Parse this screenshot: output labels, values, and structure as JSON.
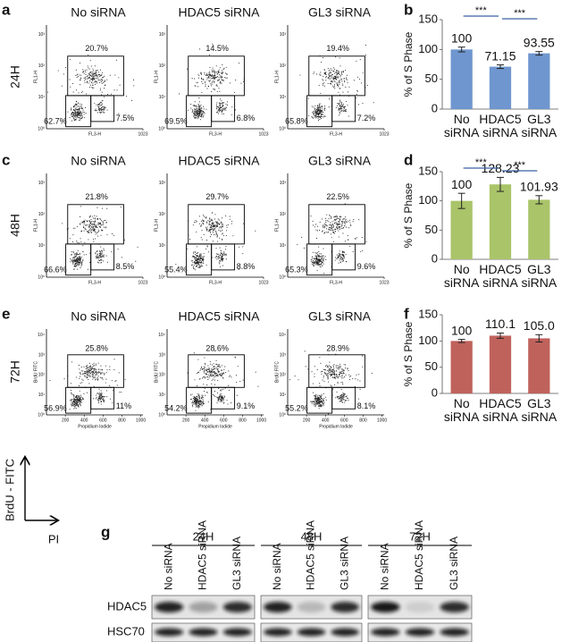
{
  "panel_labels": [
    "a",
    "b",
    "c",
    "d",
    "e",
    "f",
    "g"
  ],
  "flow": {
    "titles": [
      "No siRNA",
      "HDAC5 siRNA",
      "GL3 siRNA"
    ],
    "rows": [
      {
        "time": "24H",
        "x_label": "FL3-H",
        "y_label": "FL1-H",
        "xlim": [
          0,
          1023
        ],
        "x_ticks": [
          1023
        ],
        "y_ticks": [
          "10⁰",
          "10¹",
          "10²",
          "10³"
        ],
        "plots": [
          {
            "s": "20.7%",
            "g1": "62.7%",
            "g2": "7.5%"
          },
          {
            "s": "14.5%",
            "g1": "69.5%",
            "g2": "6.8%"
          },
          {
            "s": "19.4%",
            "g1": "65.8%",
            "g2": "7.2%"
          }
        ]
      },
      {
        "time": "48H",
        "x_label": "FL3-H",
        "y_label": "FL1-H",
        "xlim": [
          0,
          1023
        ],
        "x_ticks": [
          1023
        ],
        "y_ticks": [
          "10⁰",
          "10¹",
          "10²",
          "10³"
        ],
        "plots": [
          {
            "s": "21.8%",
            "g1": "66.6%",
            "g2": "8.5%"
          },
          {
            "s": "29.7%",
            "g1": "55.4%",
            "g2": "8.8%"
          },
          {
            "s": "22.5%",
            "g1": "65.3%",
            "g2": "9.6%"
          }
        ]
      },
      {
        "time": "72H",
        "x_label": "Propidium Iodide",
        "y_label": "BrdU FITC",
        "xlim": [
          0,
          1023
        ],
        "x_ticks": [
          200,
          400,
          600,
          800,
          1000
        ],
        "y_ticks": [
          "10⁰",
          "10¹",
          "10²",
          "10³",
          "10⁴"
        ],
        "plots": [
          {
            "s": "25.8%",
            "g1": "56.9%",
            "g2": "11%"
          },
          {
            "s": "28.6%",
            "g1": "54.2%",
            "g2": "9.1%"
          },
          {
            "s": "28.9%",
            "g1": "55.2%",
            "g2": "8.1%"
          }
        ]
      }
    ],
    "axis_arrows": {
      "y": "BrdU - FITC",
      "x": "PI"
    }
  },
  "chart_data": [
    {
      "type": "bar",
      "categories": [
        "No siRNA",
        "HDAC5 siRNA",
        "GL3 siRNA"
      ],
      "values": [
        100,
        71.15,
        93.55
      ],
      "errors": [
        4,
        3,
        3
      ],
      "color": "#6f96cf",
      "y_label": "% of S Phase",
      "ylim": [
        0,
        150
      ],
      "yticks": [
        0,
        50,
        100,
        150
      ],
      "annotations": [
        "***",
        "***"
      ]
    },
    {
      "type": "bar",
      "categories": [
        "No siRNA",
        "HDAC5 siRNA",
        "GL3 siRNA"
      ],
      "values": [
        100,
        128.23,
        101.93
      ],
      "errors": [
        13,
        12,
        7
      ],
      "color": "#a9c469",
      "y_label": "% of S Phase",
      "ylim": [
        0,
        150
      ],
      "yticks": [
        0,
        50,
        100,
        150
      ],
      "annotations": [
        "***",
        "***"
      ]
    },
    {
      "type": "bar",
      "categories": [
        "No siRNA",
        "HDAC5 siRNA",
        "GL3 siRNA"
      ],
      "values": [
        100,
        110.1,
        105
      ],
      "value_labels": [
        "100",
        "110.1",
        "105.0"
      ],
      "errors": [
        3,
        5,
        7
      ],
      "color": "#c0625c",
      "y_label": "% of S Phase",
      "ylim": [
        0,
        150
      ],
      "yticks": [
        0,
        50,
        100,
        150
      ]
    }
  ],
  "blot": {
    "times": [
      "24H",
      "48H",
      "72H"
    ],
    "lanes": [
      "No siRNA",
      "HDAC5 siRNA",
      "GL3 siRNA"
    ],
    "proteins": [
      "HDAC5",
      "HSC70"
    ]
  }
}
